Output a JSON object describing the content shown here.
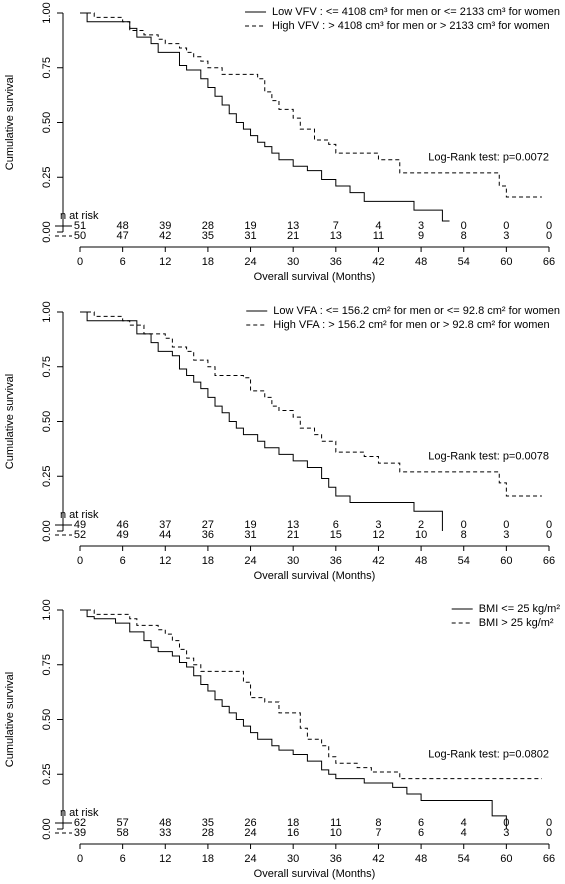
{
  "chart_data": [
    {
      "type": "line",
      "step": true,
      "legend": "topright",
      "xlabel": "Overall survival (Months)",
      "ylabel": "Cumulative survival",
      "xlim": [
        0,
        66
      ],
      "ylim": [
        0,
        1
      ],
      "xticks": [
        0,
        6,
        12,
        18,
        24,
        30,
        36,
        42,
        48,
        54,
        60,
        66
      ],
      "yticks": [
        {
          "value": 0,
          "label": "0.00"
        },
        {
          "value": 0.25,
          "label": "0.25"
        },
        {
          "value": 0.5,
          "label": "0.50"
        },
        {
          "value": 0.75,
          "label": "0.75"
        },
        {
          "value": 1,
          "label": "1.00"
        }
      ],
      "annotation": "Log-Rank test: p=0.0072",
      "series": [
        {
          "name": "Low VFV : <= 4108 cm³ for men or <= 2133 cm³ for women",
          "color": "#000000",
          "dash": "solid",
          "x": [
            0,
            1,
            6,
            7,
            8,
            10,
            11,
            12,
            14,
            15,
            17,
            18,
            19,
            20,
            21,
            22,
            23,
            24,
            25,
            26,
            27,
            28,
            30,
            32,
            34,
            36,
            38,
            40,
            46,
            47,
            50,
            51,
            52
          ],
          "values": [
            1,
            0.96,
            0.96,
            0.93,
            0.89,
            0.86,
            0.82,
            0.82,
            0.76,
            0.74,
            0.7,
            0.66,
            0.62,
            0.58,
            0.54,
            0.5,
            0.47,
            0.44,
            0.41,
            0.39,
            0.36,
            0.33,
            0.3,
            0.28,
            0.24,
            0.21,
            0.18,
            0.14,
            0.14,
            0.1,
            0.1,
            0.05,
            0.05
          ]
        },
        {
          "name": "High VFV : > 4108 cm³ for men or > 2133 cm³ for women",
          "color": "#000000",
          "dash": "dashed",
          "x": [
            0,
            2,
            6,
            7,
            9,
            11,
            12,
            14,
            15,
            16,
            17,
            18,
            20,
            25,
            26,
            27,
            28,
            30,
            31,
            33,
            35,
            36,
            42,
            45,
            58,
            59,
            60,
            65
          ],
          "values": [
            1,
            0.98,
            0.96,
            0.92,
            0.9,
            0.88,
            0.86,
            0.84,
            0.82,
            0.8,
            0.78,
            0.75,
            0.72,
            0.7,
            0.64,
            0.6,
            0.56,
            0.52,
            0.47,
            0.42,
            0.4,
            0.36,
            0.33,
            0.27,
            0.27,
            0.21,
            0.16,
            0.16
          ]
        }
      ],
      "risk_table": {
        "label": "n at risk",
        "rows": [
          [
            51,
            48,
            39,
            28,
            19,
            13,
            7,
            4,
            3,
            0,
            0,
            0
          ],
          [
            50,
            47,
            42,
            35,
            31,
            21,
            13,
            11,
            9,
            8,
            3,
            0
          ]
        ]
      }
    },
    {
      "type": "line",
      "step": true,
      "legend": "topright",
      "xlabel": "Overall survival (Months)",
      "ylabel": "Cumulative survival",
      "xlim": [
        0,
        66
      ],
      "ylim": [
        0,
        1
      ],
      "xticks": [
        0,
        6,
        12,
        18,
        24,
        30,
        36,
        42,
        48,
        54,
        60,
        66
      ],
      "yticks": [
        {
          "value": 0,
          "label": "0.00"
        },
        {
          "value": 0.25,
          "label": "0.25"
        },
        {
          "value": 0.5,
          "label": "0.50"
        },
        {
          "value": 0.75,
          "label": "0.75"
        },
        {
          "value": 1,
          "label": "1.00"
        }
      ],
      "annotation": "Log-Rank test: p=0.0078",
      "series": [
        {
          "name": "Low VFA : <= 156.2 cm² for men or <= 92.8 cm² for women",
          "color": "#000000",
          "dash": "solid",
          "x": [
            0,
            1,
            7,
            8,
            10,
            11,
            13,
            14,
            15,
            16,
            17,
            18,
            19,
            20,
            21,
            22,
            23,
            25,
            26,
            28,
            30,
            32,
            34,
            35,
            36,
            38,
            46,
            47,
            51,
            51
          ],
          "values": [
            1,
            0.96,
            0.96,
            0.9,
            0.86,
            0.82,
            0.8,
            0.74,
            0.71,
            0.68,
            0.65,
            0.61,
            0.57,
            0.54,
            0.5,
            0.47,
            0.44,
            0.41,
            0.38,
            0.35,
            0.32,
            0.29,
            0.24,
            0.2,
            0.16,
            0.13,
            0.13,
            0.09,
            0.09,
            0
          ]
        },
        {
          "name": "High VFA : > 156.2 cm² for men or > 92.8 cm² for women",
          "color": "#000000",
          "dash": "dashed",
          "x": [
            0,
            2,
            6,
            7,
            9,
            12,
            13,
            15,
            16,
            18,
            19,
            23,
            24,
            26,
            27,
            28,
            30,
            31,
            33,
            34,
            36,
            40,
            42,
            45,
            58,
            59,
            60,
            65
          ],
          "values": [
            1,
            0.98,
            0.96,
            0.94,
            0.9,
            0.88,
            0.84,
            0.82,
            0.78,
            0.75,
            0.71,
            0.7,
            0.64,
            0.61,
            0.57,
            0.55,
            0.52,
            0.47,
            0.44,
            0.41,
            0.36,
            0.34,
            0.31,
            0.27,
            0.27,
            0.22,
            0.16,
            0.16
          ]
        }
      ],
      "risk_table": {
        "label": "n at risk",
        "rows": [
          [
            49,
            46,
            37,
            27,
            19,
            13,
            6,
            3,
            2,
            0,
            0,
            0
          ],
          [
            52,
            49,
            44,
            36,
            31,
            21,
            15,
            12,
            10,
            8,
            3,
            0
          ]
        ]
      }
    },
    {
      "type": "line",
      "step": true,
      "legend": "topright",
      "xlabel": "Overall survival (Months)",
      "ylabel": "Cumulative survival",
      "xlim": [
        0,
        66
      ],
      "ylim": [
        0,
        1
      ],
      "xticks": [
        0,
        6,
        12,
        18,
        24,
        30,
        36,
        42,
        48,
        54,
        60,
        66
      ],
      "yticks": [
        {
          "value": 0,
          "label": "0.00"
        },
        {
          "value": 0.25,
          "label": "0.25"
        },
        {
          "value": 0.5,
          "label": "0.50"
        },
        {
          "value": 0.75,
          "label": "0.75"
        },
        {
          "value": 1,
          "label": "1.00"
        }
      ],
      "annotation": "Log-Rank test: p=0.0802",
      "series": [
        {
          "name": "BMI <= 25 kg/m²",
          "color": "#000000",
          "dash": "solid",
          "x": [
            0,
            1,
            2,
            5,
            7,
            9,
            10,
            11,
            13,
            14,
            15,
            16,
            17,
            18,
            19,
            20,
            21,
            22,
            23,
            24,
            25,
            27,
            28,
            30,
            32,
            34,
            35,
            36,
            40,
            44,
            46,
            48,
            58,
            58,
            60,
            60
          ],
          "values": [
            1,
            0.97,
            0.96,
            0.94,
            0.9,
            0.86,
            0.83,
            0.81,
            0.79,
            0.76,
            0.74,
            0.7,
            0.66,
            0.63,
            0.59,
            0.56,
            0.53,
            0.5,
            0.47,
            0.44,
            0.41,
            0.38,
            0.36,
            0.34,
            0.31,
            0.27,
            0.25,
            0.23,
            0.21,
            0.19,
            0.16,
            0.13,
            0.13,
            0.06,
            0.06,
            0
          ]
        },
        {
          "name": "BMI > 25 kg/m²",
          "color": "#000000",
          "dash": "dashed",
          "x": [
            0,
            2,
            7,
            8,
            11,
            12,
            13,
            14,
            15,
            16,
            17,
            22,
            23,
            24,
            26,
            28,
            31,
            32,
            34,
            35,
            36,
            39,
            41,
            45,
            65
          ],
          "values": [
            1,
            0.98,
            0.96,
            0.93,
            0.91,
            0.89,
            0.86,
            0.82,
            0.78,
            0.75,
            0.72,
            0.72,
            0.67,
            0.6,
            0.58,
            0.53,
            0.46,
            0.41,
            0.38,
            0.33,
            0.3,
            0.28,
            0.26,
            0.23,
            0.23
          ]
        }
      ],
      "risk_table": {
        "label": "n at risk",
        "rows": [
          [
            62,
            57,
            48,
            35,
            26,
            18,
            11,
            8,
            6,
            4,
            0,
            0
          ],
          [
            39,
            58,
            33,
            28,
            24,
            16,
            10,
            7,
            6,
            4,
            3,
            0
          ]
        ]
      }
    }
  ]
}
